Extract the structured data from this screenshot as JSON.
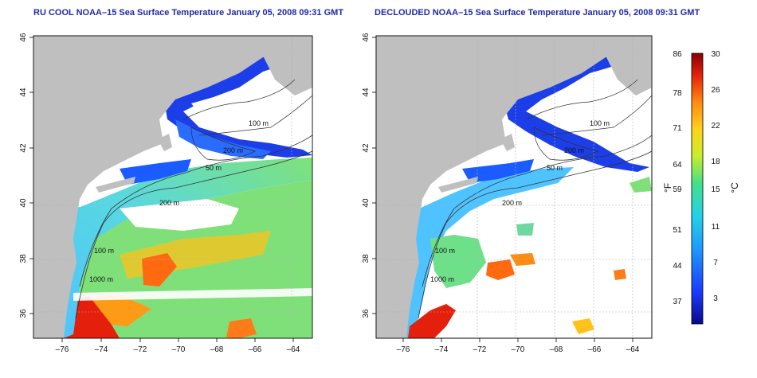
{
  "left_panel": {
    "title": "RU COOL NOAA–15 Sea Surface Temperature January 05, 2008 09:31 GMT",
    "contour_labels": [
      "100 m",
      "200 m",
      "50 m",
      "200 m",
      "100 m",
      "1000 m"
    ]
  },
  "right_panel": {
    "title": "DECLOUDED NOAA–15 Sea Surface Temperature January 05, 2008 09:31 GMT",
    "contour_labels": [
      "100 m",
      "200 m",
      "50 m",
      "200 m",
      "100 m",
      "1000 m"
    ]
  },
  "x_ticks": [
    "–76",
    "–74",
    "–72",
    "–70",
    "–68",
    "–66",
    "–64"
  ],
  "y_ticks": [
    "46",
    "44",
    "42",
    "40",
    "38",
    "36"
  ],
  "colorbar": {
    "f_label": "°F",
    "c_label": "°C",
    "f_ticks": [
      "86",
      "78",
      "71",
      "64",
      "59",
      "51",
      "44",
      "37"
    ],
    "c_ticks": [
      "30",
      "26",
      "22",
      "18",
      "15",
      "11",
      "7",
      "3"
    ]
  },
  "colors": {
    "land": "#bfbfbf",
    "cloud": "#ffffff",
    "title": "#1f2aa8",
    "grid": "#b0b0b0"
  }
}
